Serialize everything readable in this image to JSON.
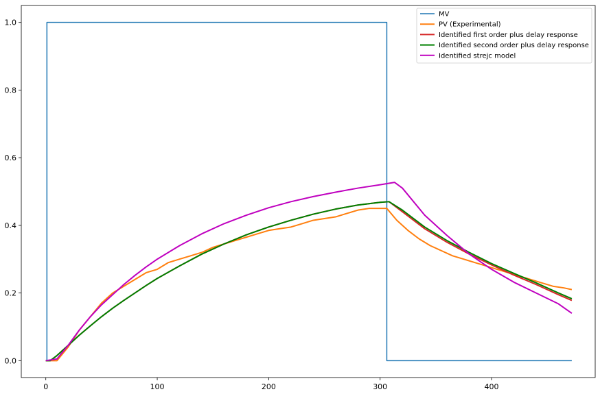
{
  "chart_data": {
    "type": "line",
    "title": "",
    "xlabel": "",
    "ylabel": "",
    "xlim": [
      -22,
      493
    ],
    "ylim": [
      -0.05,
      1.05
    ],
    "xticks": [
      0,
      100,
      200,
      300,
      400
    ],
    "xtick_labels": [
      "0",
      "100",
      "200",
      "300",
      "400"
    ],
    "yticks": [
      0.0,
      0.2,
      0.4,
      0.6,
      0.8,
      1.0
    ],
    "ytick_labels": [
      "0.0",
      "0.2",
      "0.4",
      "0.6",
      "0.8",
      "1.0"
    ],
    "grid": false,
    "legend_position": "top-right",
    "series": [
      {
        "name": "MV",
        "color": "#1f77b4",
        "x": [
          0,
          1,
          1,
          306,
          306,
          472
        ],
        "y": [
          0,
          0,
          1,
          1,
          0,
          0
        ]
      },
      {
        "name": "PV (Experimental)",
        "color": "#ff7f0e",
        "x": [
          0,
          10,
          20,
          30,
          40,
          50,
          60,
          70,
          80,
          90,
          100,
          110,
          120,
          130,
          140,
          150,
          160,
          170,
          180,
          190,
          200,
          210,
          220,
          230,
          240,
          250,
          260,
          270,
          280,
          290,
          300,
          306,
          315,
          325,
          335,
          345,
          355,
          365,
          375,
          385,
          395,
          405,
          415,
          425,
          435,
          445,
          455,
          465,
          472
        ],
        "y": [
          0.0,
          0.0,
          0.04,
          0.09,
          0.13,
          0.17,
          0.2,
          0.22,
          0.24,
          0.26,
          0.27,
          0.29,
          0.3,
          0.31,
          0.32,
          0.335,
          0.345,
          0.355,
          0.365,
          0.375,
          0.385,
          0.39,
          0.395,
          0.405,
          0.415,
          0.42,
          0.425,
          0.435,
          0.445,
          0.45,
          0.45,
          0.45,
          0.415,
          0.385,
          0.36,
          0.34,
          0.325,
          0.31,
          0.3,
          0.29,
          0.28,
          0.27,
          0.26,
          0.25,
          0.24,
          0.23,
          0.22,
          0.215,
          0.21
        ]
      },
      {
        "name": "Identified first order plus delay response",
        "color": "#d62728",
        "x": [
          0,
          4,
          10,
          20,
          30,
          40,
          50,
          60,
          70,
          80,
          90,
          100,
          120,
          140,
          160,
          180,
          200,
          220,
          240,
          260,
          280,
          300,
          308,
          320,
          340,
          360,
          380,
          400,
          420,
          440,
          460,
          472
        ],
        "y": [
          0.0,
          0.0,
          0.015,
          0.045,
          0.075,
          0.103,
          0.13,
          0.155,
          0.178,
          0.2,
          0.222,
          0.243,
          0.28,
          0.315,
          0.345,
          0.372,
          0.395,
          0.415,
          0.433,
          0.448,
          0.46,
          0.468,
          0.47,
          0.44,
          0.39,
          0.35,
          0.315,
          0.283,
          0.253,
          0.225,
          0.195,
          0.178
        ]
      },
      {
        "name": "Identified second order plus delay response",
        "color": "#008000",
        "x": [
          0,
          4,
          10,
          20,
          30,
          40,
          50,
          60,
          70,
          80,
          90,
          100,
          120,
          140,
          160,
          180,
          200,
          220,
          240,
          260,
          280,
          300,
          308,
          320,
          340,
          360,
          380,
          400,
          420,
          440,
          460,
          472
        ],
        "y": [
          0.0,
          0.0,
          0.015,
          0.045,
          0.075,
          0.103,
          0.13,
          0.155,
          0.178,
          0.2,
          0.222,
          0.243,
          0.28,
          0.315,
          0.345,
          0.372,
          0.395,
          0.415,
          0.433,
          0.448,
          0.46,
          0.468,
          0.47,
          0.445,
          0.395,
          0.355,
          0.32,
          0.287,
          0.258,
          0.23,
          0.2,
          0.183
        ]
      },
      {
        "name": "Identified strejc model",
        "color": "#bf00bf",
        "x": [
          0,
          10,
          20,
          30,
          40,
          50,
          60,
          70,
          80,
          90,
          100,
          120,
          140,
          160,
          180,
          200,
          220,
          240,
          260,
          280,
          300,
          313,
          320,
          340,
          360,
          380,
          400,
          420,
          440,
          460,
          472
        ],
        "y": [
          0.0,
          0.005,
          0.045,
          0.09,
          0.13,
          0.165,
          0.195,
          0.225,
          0.252,
          0.277,
          0.3,
          0.34,
          0.375,
          0.405,
          0.43,
          0.452,
          0.47,
          0.485,
          0.498,
          0.51,
          0.52,
          0.527,
          0.51,
          0.43,
          0.37,
          0.315,
          0.27,
          0.232,
          0.2,
          0.168,
          0.14
        ]
      }
    ]
  }
}
